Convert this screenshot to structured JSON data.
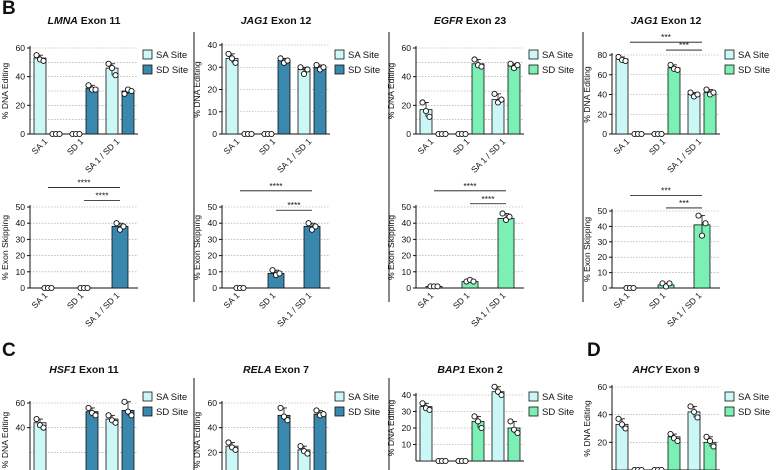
{
  "panel_labels": {
    "b": "B",
    "c": "C",
    "d": "D"
  },
  "legend_labels": {
    "sa": "SA Site",
    "sd": "SD Site"
  },
  "colors": {
    "sa_fill": "#ccf7f7",
    "sd_blue": "#3a88ad",
    "sd_green": "#7cf0b4",
    "axis": "#111111",
    "grid": "#9a9a9a"
  },
  "chart_data": [
    {
      "id": "lmna-edit",
      "type": "bar",
      "title_gene": "LMNA",
      "title_rest": " Exon 11",
      "title_italic": true,
      "ylabel": "% DNA Editing",
      "ylim": [
        0,
        60
      ],
      "yticks": [
        0,
        20,
        40,
        60
      ],
      "grid_values": [
        10,
        20,
        30,
        40,
        50,
        60
      ],
      "categories": [
        "SA 1",
        "SD 1",
        "SA 1 / SD 1"
      ],
      "series": [
        {
          "name": "SA Site",
          "values": [
            53,
            0,
            46
          ],
          "points": [
            [
              55,
              52,
              51
            ],
            [
              0,
              0,
              0
            ],
            [
              49,
              46,
              41
            ]
          ]
        },
        {
          "name": "SD Site",
          "values": [
            0,
            32,
            30
          ],
          "points": [
            [
              0,
              0,
              0
            ],
            [
              34,
              31,
              31
            ],
            [
              28,
              31,
              30
            ]
          ]
        }
      ],
      "sd_color": "blue"
    },
    {
      "id": "jag1-edit",
      "type": "bar",
      "title_gene": "JAG1",
      "title_rest": " Exon 12",
      "title_italic": true,
      "ylabel": "% DNA Editing",
      "ylim": [
        0,
        40
      ],
      "yticks": [
        0,
        10,
        20,
        30,
        40
      ],
      "grid_values": [
        10,
        20,
        30,
        40
      ],
      "categories": [
        "SA 1",
        "SD 1",
        "SA 1 / SD 1"
      ],
      "series": [
        {
          "name": "SA Site",
          "values": [
            34,
            0,
            29
          ],
          "points": [
            [
              36,
              34,
              32
            ],
            [
              0,
              0,
              0
            ],
            [
              30,
              27,
              29
            ]
          ]
        },
        {
          "name": "SD Site",
          "values": [
            0,
            33,
            30
          ],
          "points": [
            [
              0,
              0,
              0
            ],
            [
              34,
              32,
              33
            ],
            [
              31,
              29,
              30
            ]
          ]
        }
      ],
      "sd_color": "blue"
    },
    {
      "id": "egfr-edit",
      "type": "bar",
      "title_gene": "EGFR",
      "title_rest": " Exon 23",
      "title_italic": true,
      "ylabel": "% DNA Editing",
      "ylim": [
        0,
        60
      ],
      "yticks": [
        0,
        20,
        40,
        60
      ],
      "grid_values": [
        10,
        20,
        30,
        40,
        50,
        60
      ],
      "categories": [
        "SA 1",
        "SD 1",
        "SA 1 / SD 1"
      ],
      "series": [
        {
          "name": "SA Site",
          "values": [
            17,
            0,
            24
          ],
          "points": [
            [
              22,
              16,
              12
            ],
            [
              0,
              0,
              0
            ],
            [
              28,
              22,
              24
            ]
          ]
        },
        {
          "name": "SD Site",
          "values": [
            0,
            49,
            48
          ],
          "points": [
            [
              0,
              0,
              0
            ],
            [
              52,
              48,
              47
            ],
            [
              49,
              46,
              48
            ]
          ]
        }
      ],
      "sd_color": "green"
    },
    {
      "id": "jag1-edit-green",
      "type": "bar",
      "title_gene": "JAG1",
      "title_rest": " Exon 12",
      "title_italic": true,
      "ylabel": "% DNA Editing",
      "ylim": [
        0,
        80
      ],
      "yticks": [
        0,
        20,
        40,
        60,
        80
      ],
      "grid_values": [
        20,
        40,
        60,
        80
      ],
      "categories": [
        "SA 1",
        "SD 1",
        "SA 1 / SD 1"
      ],
      "series": [
        {
          "name": "SA Site",
          "values": [
            76,
            0,
            40
          ],
          "points": [
            [
              78,
              75,
              74
            ],
            [
              0,
              0,
              0
            ],
            [
              42,
              38,
              40
            ]
          ]
        },
        {
          "name": "SD Site",
          "values": [
            0,
            67,
            42
          ],
          "points": [
            [
              0,
              0,
              0
            ],
            [
              70,
              66,
              65
            ],
            [
              45,
              40,
              42
            ]
          ]
        }
      ],
      "sig": [
        {
          "from_group": 0,
          "to_group": 2,
          "label": "***",
          "y": 93
        },
        {
          "from_group": 1,
          "to_group": 2,
          "label": "***",
          "y": 85
        }
      ],
      "sd_color": "green"
    },
    {
      "id": "lmna-skip",
      "type": "bar",
      "ylabel": "% Exon Skipping",
      "ylim": [
        0,
        50
      ],
      "yticks": [
        0,
        10,
        20,
        30,
        40,
        50
      ],
      "grid_values": [
        10,
        20,
        30,
        40,
        50
      ],
      "categories": [
        "SA 1",
        "SD 1",
        "SA 1 / SD 1"
      ],
      "values": [
        0,
        0,
        38
      ],
      "points": [
        [
          0,
          0,
          0
        ],
        [
          0,
          0,
          0
        ],
        [
          40,
          36,
          38
        ]
      ],
      "sig": [
        {
          "from_group": 0,
          "to_group": 2,
          "label": "****",
          "y": 62
        },
        {
          "from_group": 1,
          "to_group": 2,
          "label": "****",
          "y": 54
        }
      ],
      "color": "blue"
    },
    {
      "id": "jag1-skip",
      "type": "bar",
      "ylabel": "% Exon Skipping",
      "ylim": [
        0,
        50
      ],
      "yticks": [
        0,
        10,
        20,
        30,
        40,
        50
      ],
      "grid_values": [
        10,
        20,
        30,
        40,
        50
      ],
      "categories": [
        "SA 1",
        "SD 1",
        "SA 1 / SD 1"
      ],
      "values": [
        0,
        9,
        38
      ],
      "points": [
        [
          0,
          0,
          0
        ],
        [
          11,
          8,
          9
        ],
        [
          40,
          36,
          38
        ]
      ],
      "sig": [
        {
          "from_group": 0,
          "to_group": 2,
          "label": "****",
          "y": 60
        },
        {
          "from_group": 1,
          "to_group": 2,
          "label": "****",
          "y": 48
        }
      ],
      "color": "blue"
    },
    {
      "id": "egfr-skip",
      "type": "bar",
      "ylabel": "% Exon Skipping",
      "ylim": [
        0,
        50
      ],
      "yticks": [
        0,
        10,
        20,
        30,
        40,
        50
      ],
      "grid_values": [
        10,
        20,
        30,
        40,
        50
      ],
      "categories": [
        "SA 1",
        "SD 1",
        "SA 1 / SD 1"
      ],
      "values": [
        1,
        4,
        43
      ],
      "points": [
        [
          1,
          1,
          1
        ],
        [
          4,
          5,
          4
        ],
        [
          46,
          42,
          44
        ]
      ],
      "sig": [
        {
          "from_group": 0,
          "to_group": 2,
          "label": "****",
          "y": 60
        },
        {
          "from_group": 1,
          "to_group": 2,
          "label": "****",
          "y": 52
        }
      ],
      "color": "green"
    },
    {
      "id": "jag1-skip-green",
      "type": "bar",
      "ylabel": "% Exon Skipping",
      "ylim": [
        0,
        50
      ],
      "yticks": [
        0,
        10,
        20,
        30,
        40,
        50
      ],
      "grid_values": [
        10,
        20,
        30,
        40,
        50
      ],
      "categories": [
        "SA 1",
        "SD 1",
        "SA 1 / SD 1"
      ],
      "values": [
        0,
        2,
        41
      ],
      "points": [
        [
          0,
          0,
          0
        ],
        [
          3,
          1,
          3
        ],
        [
          47,
          34,
          42
        ]
      ],
      "sig": [
        {
          "from_group": 0,
          "to_group": 2,
          "label": "***",
          "y": 60
        },
        {
          "from_group": 1,
          "to_group": 2,
          "label": "***",
          "y": 52
        }
      ],
      "color": "green"
    },
    {
      "id": "hsf1-edit",
      "type": "bar",
      "title_gene": "HSF1",
      "title_rest": " Exon 11",
      "title_italic": true,
      "ylabel": "% DNA Editing",
      "ylim": [
        0,
        60
      ],
      "yticks": [
        40,
        60
      ],
      "grid_values": [
        20,
        40,
        60
      ],
      "categories": [
        "SA 1",
        "SD 1",
        "SA 1 / SD 1"
      ],
      "series": [
        {
          "name": "SA Site",
          "values": [
            44,
            0,
            47
          ],
          "points": [
            [
              47,
              42,
              40
            ],
            [
              0,
              0,
              0
            ],
            [
              50,
              46,
              44
            ]
          ]
        },
        {
          "name": "SD Site",
          "values": [
            0,
            53,
            54
          ],
          "points": [
            [
              0,
              0,
              0
            ],
            [
              56,
              52,
              50
            ],
            [
              61,
              53,
              50
            ]
          ]
        }
      ],
      "sd_color": "blue"
    },
    {
      "id": "rela-edit",
      "type": "bar",
      "title_gene": "RELA",
      "title_rest": " Exon 7",
      "title_italic": true,
      "ylabel": "% DNA Editing",
      "ylim": [
        0,
        60
      ],
      "yticks": [
        20,
        40,
        60
      ],
      "grid_values": [
        20,
        40,
        60
      ],
      "categories": [
        "SA 1",
        "SD 1",
        "SA 1 / SD 1"
      ],
      "series": [
        {
          "name": "SA Site",
          "values": [
            25,
            0,
            22
          ],
          "points": [
            [
              28,
              24,
              22
            ],
            [
              0,
              0,
              0
            ],
            [
              25,
              21,
              19
            ]
          ]
        },
        {
          "name": "SD Site",
          "values": [
            0,
            50,
            51
          ],
          "points": [
            [
              0,
              0,
              0
            ],
            [
              56,
              49,
              46
            ],
            [
              54,
              50,
              51
            ]
          ]
        }
      ],
      "sd_color": "blue"
    },
    {
      "id": "bap1-edit",
      "type": "bar",
      "title_gene": "BAP1",
      "title_rest": " Exon 2",
      "title_italic": true,
      "ylabel": "% DNA Editing",
      "ylim": [
        0,
        40
      ],
      "yticks": [
        10,
        20,
        30,
        40
      ],
      "grid_values": [
        10,
        20,
        30,
        40
      ],
      "categories": [
        "SA 1",
        "SD 1",
        "SA 1 / SD 1"
      ],
      "series": [
        {
          "name": "SA Site",
          "values": [
            33,
            0,
            42
          ],
          "points": [
            [
              35,
              32,
              31
            ],
            [
              0,
              0,
              0
            ],
            [
              45,
              42,
              40
            ]
          ]
        },
        {
          "name": "SD Site",
          "values": [
            0,
            24,
            20
          ],
          "points": [
            [
              0,
              0,
              0
            ],
            [
              27,
              24,
              20
            ],
            [
              24,
              19,
              17
            ]
          ]
        }
      ],
      "sd_color": "green"
    },
    {
      "id": "ahcy-edit",
      "type": "bar",
      "title_gene": "AHCY",
      "title_rest": " Exon 9",
      "title_italic": true,
      "ylabel": "% DNA Editing",
      "ylim": [
        0,
        60
      ],
      "yticks": [
        20,
        40,
        60
      ],
      "grid_values": [
        20,
        40,
        60
      ],
      "categories": [
        "SA 1",
        "SD 1",
        "SA 1 / SD 1"
      ],
      "series": [
        {
          "name": "SA Site",
          "values": [
            33,
            0,
            42
          ],
          "points": [
            [
              37,
              33,
              30
            ],
            [
              0,
              0,
              0
            ],
            [
              46,
              42,
              38
            ]
          ]
        },
        {
          "name": "SD Site",
          "values": [
            0,
            24,
            20
          ],
          "points": [
            [
              0,
              0,
              0
            ],
            [
              26,
              23,
              21
            ],
            [
              24,
              21,
              17
            ]
          ]
        }
      ],
      "sd_color": "green"
    }
  ]
}
